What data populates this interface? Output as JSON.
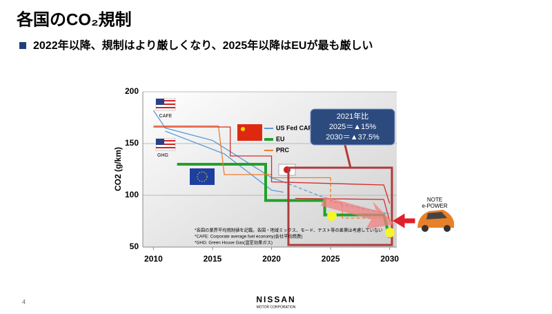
{
  "slide": {
    "title": "各国のCO₂規制",
    "bullet": "2022年以降、規制はより厳しくなり、2025年以降はEUが最も厳しい",
    "page": "4",
    "logo": "NISSAN",
    "logo_sub": "MOTOR CORPORATION",
    "car_label": [
      "NOTE",
      "e-POWER"
    ]
  },
  "chart_data": {
    "type": "line",
    "ylabel": "CO2 (g/km)",
    "xlim": [
      2009.1,
      2030.6
    ],
    "xticks": [
      2010,
      2015,
      2020,
      2025,
      2030
    ],
    "ylim": [
      50,
      200
    ],
    "yticks": [
      50,
      100,
      150,
      200
    ],
    "grid": true,
    "series": [
      {
        "name": "US Fed CAFE",
        "color": "#5b9bd5",
        "x": [
          2010,
          2011,
          2015,
          2020,
          2021
        ],
        "values": [
          182,
          165,
          153,
          117,
          113
        ]
      },
      {
        "color": "#5b9bd5",
        "dash": true,
        "x": [
          2021,
          2026,
          2030
        ],
        "values": [
          113,
          91,
          82
        ]
      },
      {
        "color": "#5b9bd5",
        "x": [
          2011,
          2016,
          2020,
          2021
        ],
        "values": [
          162,
          140,
          105,
          103
        ]
      },
      {
        "name": "EU",
        "color": "#22a02a",
        "width": 4,
        "x": [
          2012,
          2019.5,
          2019.5,
          2024.5,
          2024.5,
          2029.5,
          2030
        ],
        "values": [
          130,
          130,
          95,
          95,
          81,
          81,
          59
        ]
      },
      {
        "name": "PRC",
        "color": "#f07c2c",
        "x": [
          2010,
          2015.5,
          2016,
          2020,
          2020,
          2025
        ],
        "values": [
          167,
          167,
          120,
          120,
          117,
          117
        ]
      },
      {
        "color": "#f07c2c",
        "dash": true,
        "x": [
          2025,
          2025,
          2026,
          2026,
          2030
        ],
        "values": [
          117,
          93,
          93,
          78,
          78
        ]
      },
      {
        "color": "#d42a2a",
        "x": [
          2010,
          2016.5,
          2016.5,
          2020,
          2020,
          2029.5,
          2030
        ],
        "values": [
          166,
          166,
          138,
          138,
          113,
          110,
          92
        ]
      },
      {
        "color": "#d42a2a",
        "x": [
          2022,
          2029.5,
          2030
        ],
        "values": [
          97,
          96,
          75
        ]
      }
    ],
    "legend": "top-right",
    "flag_labels": [
      "CAFE",
      "GHG"
    ],
    "callout": [
      "2021年比",
      "2025＝▲15%",
      "2030＝▲37.5%"
    ],
    "footnotes": [
      "*各国の業界平均規制値を記載。各国・地域ミックス、モード、テスト等の差異は考慮していない",
      "*CAFE: Corporate average fuel economy(会社平均燃費)",
      "*GHG: Green House Gas(温室効果ガス)"
    ]
  }
}
